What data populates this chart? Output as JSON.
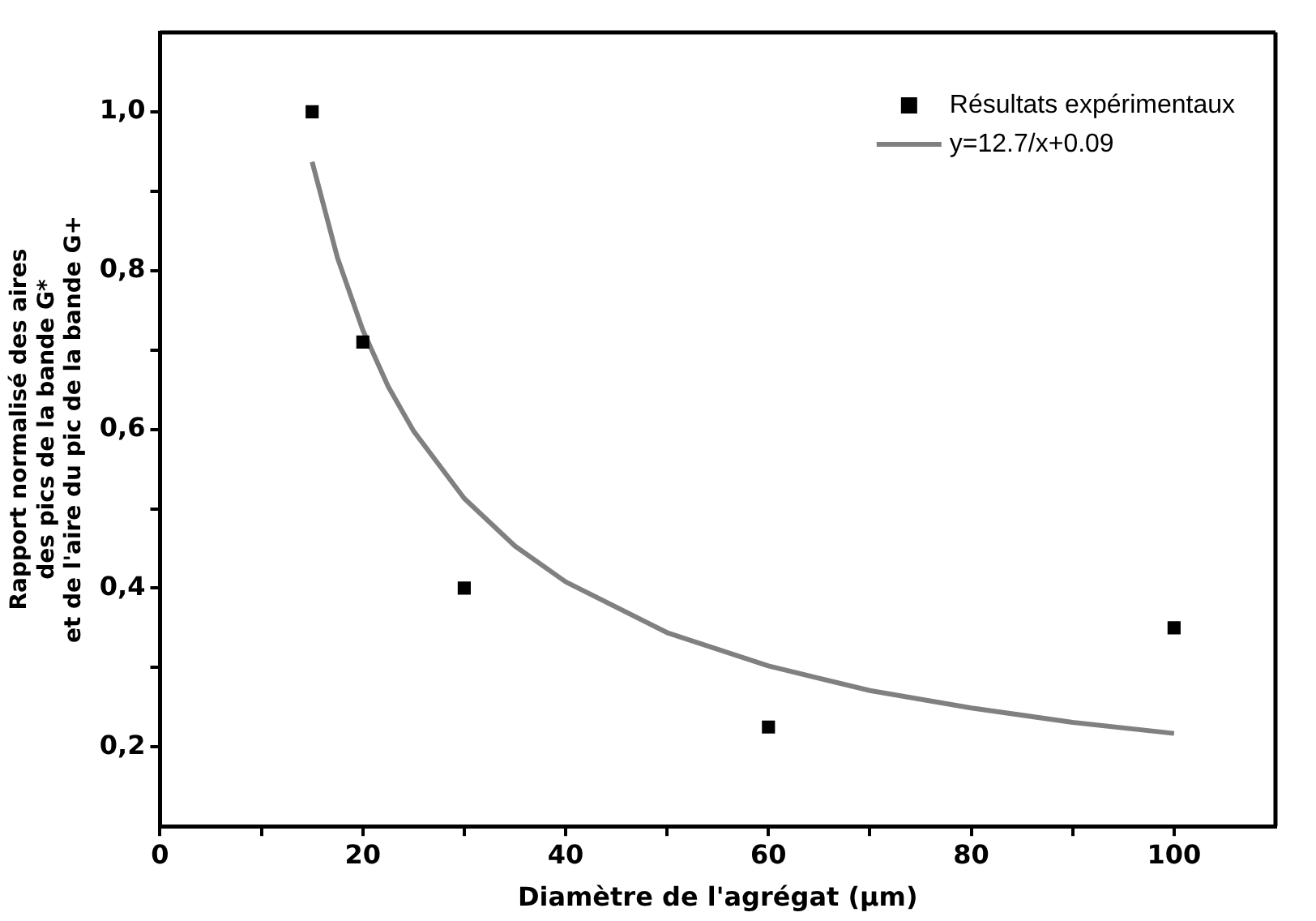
{
  "chart_data": {
    "type": "scatter",
    "xlabel": "Diamètre de l'agrégat (µm)",
    "ylabel": "Rapport normalisé des aires\ndes pics de la bande G*\net de l'aire du pic de la bande G+",
    "xlim": [
      0,
      110
    ],
    "ylim": [
      0.1,
      1.1
    ],
    "xticks": [
      0,
      {
        "value": 10,
        "label": null
      },
      20,
      {
        "value": 30,
        "label": null
      },
      40,
      {
        "value": 50,
        "label": null
      },
      60,
      {
        "value": 70,
        "label": null
      },
      80,
      {
        "value": 90,
        "label": null
      },
      100
    ],
    "yticks": [
      {
        "value": 0.2,
        "label": "0,2"
      },
      {
        "value": 0.3,
        "label": null
      },
      {
        "value": 0.4,
        "label": "0,4"
      },
      {
        "value": 0.5,
        "label": null
      },
      {
        "value": 0.6,
        "label": "0,6"
      },
      {
        "value": 0.7,
        "label": null
      },
      {
        "value": 0.8,
        "label": "0,8"
      },
      {
        "value": 0.9,
        "label": null
      },
      {
        "value": 1.0,
        "label": "1,0"
      }
    ],
    "grid": false,
    "legend": "top right",
    "marker": "square",
    "series": [
      {
        "name": "Résultats expérimentaux",
        "type": "scatter",
        "color": "#000000",
        "x": [
          15,
          20,
          30,
          60,
          100
        ],
        "values": [
          1.0,
          0.71,
          0.4,
          0.225,
          0.35
        ]
      },
      {
        "name": "y=12.7/x+0.09",
        "type": "line",
        "color": "#808080",
        "marker": "none",
        "line_style": "solid",
        "x": [
          15,
          17.5,
          20,
          22.5,
          25,
          30,
          35,
          40,
          50,
          60,
          70,
          80,
          90,
          100
        ],
        "values": [
          0.937,
          0.816,
          0.725,
          0.654,
          0.598,
          0.513,
          0.453,
          0.408,
          0.344,
          0.302,
          0.271,
          0.249,
          0.231,
          0.217
        ]
      }
    ]
  }
}
